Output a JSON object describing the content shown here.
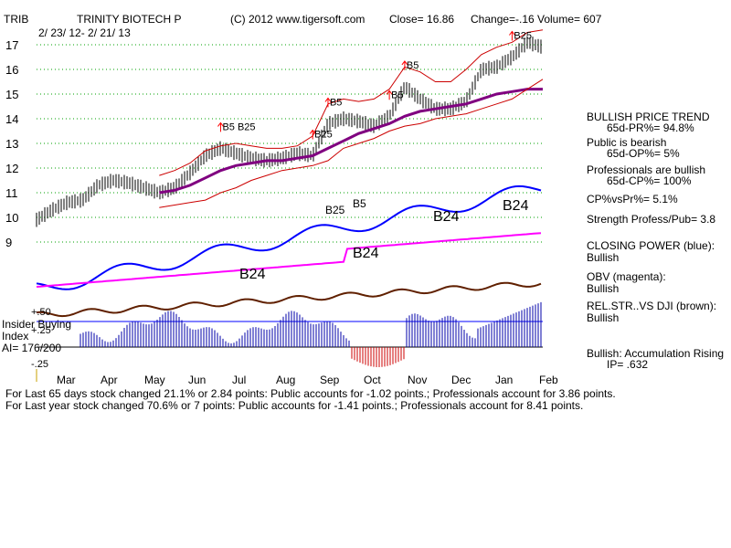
{
  "header": {
    "ticker": "TRIB",
    "name": "TRINITY BIOTECH P",
    "copyright": "(C) 2012 www.tigersoft.com",
    "close": "Close=  16.86",
    "change": "Change=-.16",
    "volume": "Volume= 607",
    "date_range": "2/ 23/ 12-  2/ 21/ 13"
  },
  "right_panel": {
    "trend_title": "BULLISH PRICE TREND",
    "pr": "65d-PR%= 94.8%",
    "public_title": "Public is bearish",
    "op": "65d-OP%= 5%",
    "pro_title": "Professionals are bullish",
    "cp": "65d-CP%= 100%",
    "cpvspr": "CP%vsPr%=  5.1%",
    "strength": "Strength Profess/Pub= 3.8",
    "closing_power_label": "CLOSING POWER (blue):",
    "closing_power_val": "Bullish",
    "obv_label": "OBV (magenta):",
    "obv_val": "Bullish",
    "relstr_label": "REL.STR..VS DJI (brown):",
    "relstr_val": "Bullish",
    "accum": "Bullish: Accumulation Rising",
    "ip": "IP=  .632"
  },
  "lower_labels": {
    "insider_overlap": "Insider Buying",
    "index": "Index",
    "ai": "AI= 176/200",
    "p50": "+.50",
    "p25": "+.25",
    "m25": "-.25"
  },
  "footer": {
    "line1": "For Last 65 days stock changed  21.1% or  2.84 points:  Public accounts for -1.02 points.;  Professionals account for  3.86 points.",
    "line2": "For Last year stock changed  70.6% or  7 points:  Public accounts for -1.41 points.;  Professionals account for  8.41 points."
  },
  "colors": {
    "price": "#000000",
    "envelope": "#cc0000",
    "ma": "#800080",
    "closing_power": "#0000ff",
    "obv": "#ff00ff",
    "relstr": "#602000",
    "accum": "#0000aa",
    "grid": "#00a000",
    "signal": "#ff0000"
  },
  "chart_data": {
    "type": "line",
    "title": "TRINITY BIOTECH P",
    "x_labels": [
      "Mar",
      "Apr",
      "May",
      "Jun",
      "Jul",
      "Aug",
      "Sep",
      "Oct",
      "Nov",
      "Dec",
      "Jan",
      "Feb"
    ],
    "y_ticks": [
      9,
      10,
      11,
      12,
      13,
      14,
      15,
      16,
      17
    ],
    "ylim": [
      9,
      17.5
    ],
    "series": [
      {
        "name": "Close",
        "values": [
          9.9,
          10.3,
          10.6,
          10.7,
          11.3,
          11.5,
          11.4,
          11.2,
          11.0,
          11.2,
          11.8,
          12.5,
          12.8,
          12.6,
          12.4,
          12.3,
          12.4,
          12.6,
          12.5,
          13.8,
          14.0,
          13.9,
          13.7,
          14.1,
          15.3,
          14.8,
          14.4,
          14.4,
          14.7,
          16.0,
          16.1,
          16.5,
          17.1,
          16.9
        ]
      },
      {
        "name": "21-day MA",
        "values": [
          null,
          null,
          null,
          null,
          null,
          null,
          null,
          null,
          11.0,
          11.1,
          11.3,
          11.6,
          11.9,
          12.1,
          12.2,
          12.3,
          12.3,
          12.4,
          12.5,
          12.8,
          13.1,
          13.4,
          13.6,
          13.8,
          14.1,
          14.3,
          14.4,
          14.5,
          14.6,
          14.8,
          15.0,
          15.1,
          15.2,
          15.2
        ]
      },
      {
        "name": "Upper band",
        "values": [
          null,
          null,
          null,
          null,
          null,
          null,
          null,
          null,
          11.7,
          11.9,
          12.2,
          12.7,
          12.9,
          13.0,
          12.9,
          12.8,
          12.8,
          12.9,
          13.3,
          14.6,
          14.8,
          14.7,
          14.8,
          15.2,
          16.1,
          15.9,
          15.5,
          15.5,
          16.0,
          16.6,
          16.9,
          17.1,
          17.5,
          17.6
        ]
      },
      {
        "name": "Lower band",
        "values": [
          null,
          null,
          null,
          null,
          null,
          null,
          null,
          null,
          10.4,
          10.5,
          10.6,
          10.7,
          11.0,
          11.2,
          11.5,
          11.7,
          11.9,
          12.0,
          12.1,
          12.3,
          12.8,
          13.0,
          13.2,
          13.5,
          13.7,
          13.8,
          14.0,
          14.1,
          14.2,
          14.4,
          14.6,
          14.8,
          15.2,
          15.6
        ]
      }
    ],
    "signals": [
      {
        "label": "B5 B25",
        "index": 12
      },
      {
        "label": "B25",
        "index": 18
      },
      {
        "label": "B5",
        "index": 19
      },
      {
        "label": "B5",
        "index": 23
      },
      {
        "label": "B5",
        "index": 24
      },
      {
        "label": "B25",
        "index": 31
      }
    ],
    "closing_power_labels": [
      "B25",
      "B5",
      "B24",
      "B24"
    ],
    "obv_labels": [
      "B24",
      "B24"
    ]
  }
}
